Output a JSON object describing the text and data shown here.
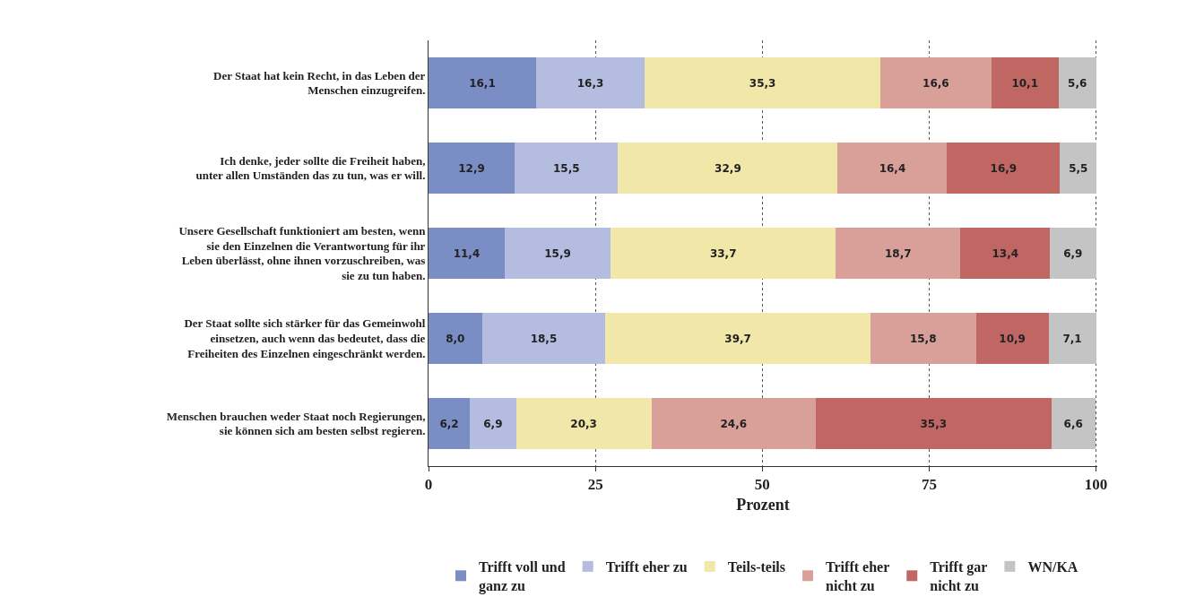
{
  "chart_data": {
    "type": "bar",
    "orientation": "horizontal",
    "stacked": true,
    "categories": [
      "Der Staat hat kein Recht, in das Leben der Menschen einzugreifen.",
      "Ich denke, jeder sollte die Freiheit haben, unter allen Umständen das zu tun, was er will.",
      "Unsere Gesellschaft funktioniert am besten, wenn sie den Einzelnen die Verantwortung für ihr Leben überlässt, ohne ihnen vorzuschreiben, was sie zu tun haben.",
      "Der Staat sollte sich stärker für das Gemeinwohl einsetzen, auch wenn das bedeutet, dass die Freiheiten des Einzelnen eingeschränkt werden.",
      "Menschen brauchen weder Staat noch Regierungen, sie können sich am besten selbst regieren."
    ],
    "series": [
      {
        "name": "Trifft voll und ganz zu",
        "color": "#7b8dc5",
        "values": [
          16.1,
          12.9,
          11.4,
          8.0,
          6.2
        ],
        "value_labels": [
          "16,1",
          "12,9",
          "11,4",
          "8,0",
          "6,2"
        ]
      },
      {
        "name": "Trifft eher zu",
        "color": "#b4bde0",
        "values": [
          16.3,
          15.5,
          15.9,
          18.5,
          6.9
        ],
        "value_labels": [
          "16,3",
          "15,5",
          "15,9",
          "18,5",
          "6,9"
        ]
      },
      {
        "name": "Teils-teils",
        "color": "#f0e7a9",
        "values": [
          35.3,
          32.9,
          33.7,
          39.7,
          20.3
        ],
        "value_labels": [
          "35,3",
          "32,9",
          "33,7",
          "39,7",
          "20,3"
        ]
      },
      {
        "name": "Trifft eher nicht zu",
        "color": "#d9a09a",
        "values": [
          16.6,
          16.4,
          18.7,
          15.8,
          24.6
        ],
        "value_labels": [
          "16,6",
          "16,4",
          "18,7",
          "15,8",
          "24,6"
        ]
      },
      {
        "name": "Trifft gar nicht zu",
        "color": "#c06763",
        "values": [
          10.1,
          16.9,
          13.4,
          10.9,
          35.3
        ],
        "value_labels": [
          "10,1",
          "16,9",
          "13,4",
          "10,9",
          "35,3"
        ]
      },
      {
        "name": "WN/KA",
        "color": "#c4c4c4",
        "values": [
          5.6,
          5.5,
          6.9,
          7.1,
          6.6
        ],
        "value_labels": [
          "5,6",
          "5,5",
          "6,9",
          "7,1",
          "6,6"
        ]
      }
    ],
    "xlabel": "Prozent",
    "xlim": [
      0,
      100.2
    ],
    "xticks": [
      0,
      25,
      50,
      75,
      100
    ],
    "grid": "x",
    "legend": "bottom"
  }
}
